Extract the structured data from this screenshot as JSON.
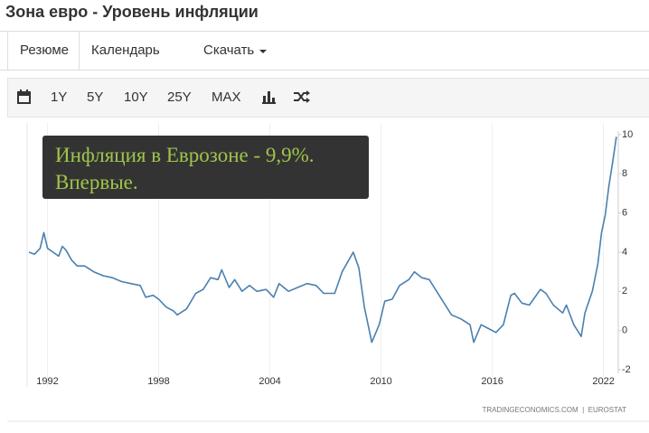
{
  "header": {
    "title": "Зона евро - Уровень инфляции"
  },
  "tabs": [
    "Резюме",
    "Календарь",
    "Скачать"
  ],
  "toolbar": [
    "1Y",
    "5Y",
    "10Y",
    "25Y",
    "MAX"
  ],
  "chart_data": {
    "type": "line",
    "annotation": [
      "Инфляция в Еврозоне - 9,9%.",
      "Впервые."
    ],
    "source": "TRADINGECONOMICS.COM  |  EUROSTAT",
    "color": "#4a80b0",
    "x": [
      1991.0,
      1991.3,
      1991.6,
      1991.8,
      1992.0,
      1992.3,
      1992.6,
      1992.8,
      1993.0,
      1993.3,
      1993.6,
      1994.0,
      1994.5,
      1995.0,
      1995.5,
      1996.0,
      1996.5,
      1997.0,
      1997.3,
      1997.7,
      1998.0,
      1998.4,
      1998.8,
      1999.0,
      1999.5,
      2000.0,
      2000.4,
      2000.8,
      2001.2,
      2001.4,
      2001.8,
      2002.1,
      2002.5,
      2002.9,
      2003.3,
      2003.8,
      2004.2,
      2004.5,
      2005.0,
      2005.5,
      2006.0,
      2006.5,
      2006.9,
      2007.5,
      2007.9,
      2008.2,
      2008.5,
      2008.8,
      2009.1,
      2009.5,
      2009.9,
      2010.2,
      2010.6,
      2011.0,
      2011.5,
      2011.8,
      2012.2,
      2012.6,
      2013.0,
      2013.4,
      2013.8,
      2014.3,
      2014.8,
      2015.0,
      2015.4,
      2015.8,
      2016.2,
      2016.6,
      2017.0,
      2017.2,
      2017.6,
      2018.0,
      2018.6,
      2018.9,
      2019.3,
      2019.8,
      2020.0,
      2020.4,
      2020.8,
      2021.0,
      2021.4,
      2021.7,
      2021.9,
      2022.1,
      2022.3,
      2022.5,
      2022.7
    ],
    "values": [
      4.0,
      3.9,
      4.2,
      5.0,
      4.2,
      4.0,
      3.8,
      4.3,
      4.1,
      3.6,
      3.3,
      3.3,
      3.0,
      2.8,
      2.7,
      2.5,
      2.4,
      2.3,
      1.7,
      1.8,
      1.6,
      1.2,
      1.0,
      0.8,
      1.1,
      1.9,
      2.1,
      2.7,
      2.6,
      3.1,
      2.2,
      2.6,
      2.0,
      2.3,
      2.0,
      2.1,
      1.7,
      2.4,
      2.0,
      2.2,
      2.4,
      2.3,
      1.9,
      1.9,
      3.0,
      3.5,
      4.0,
      3.2,
      1.2,
      -0.6,
      0.3,
      1.5,
      1.6,
      2.3,
      2.6,
      3.0,
      2.7,
      2.6,
      2.0,
      1.4,
      0.8,
      0.6,
      0.3,
      -0.6,
      0.3,
      0.1,
      -0.1,
      0.3,
      1.8,
      1.9,
      1.4,
      1.3,
      2.1,
      1.9,
      1.3,
      0.9,
      1.3,
      0.3,
      -0.3,
      0.9,
      2.0,
      3.4,
      5.0,
      5.9,
      7.4,
      8.6,
      9.9
    ],
    "xlim": [
      1990.9,
      2022.8
    ],
    "xticks": [
      1992,
      1998,
      2004,
      2010,
      2016,
      2022
    ],
    "ylim": [
      -2,
      10
    ],
    "yticks": [
      -2,
      0,
      2,
      4,
      6,
      8,
      10
    ],
    "grid": true
  }
}
